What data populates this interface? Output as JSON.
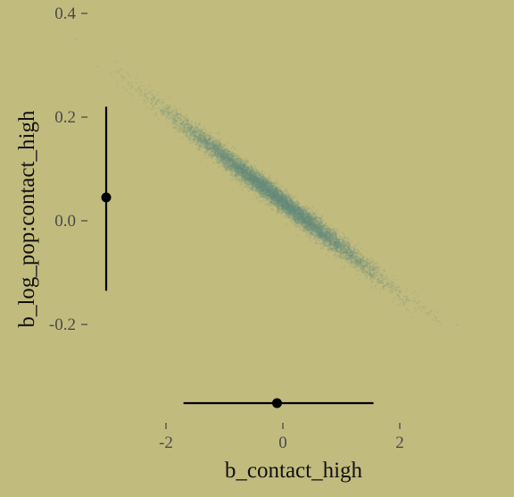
{
  "chart_data": {
    "type": "scatter",
    "xlabel": "b_contact_high",
    "ylabel": "b_log_pop:contact_high",
    "x_ticks": [
      -2,
      0,
      2
    ],
    "x_tick_labels": [
      "-2",
      "0",
      "2"
    ],
    "y_ticks": [
      -0.2,
      0.0,
      0.2,
      0.4
    ],
    "y_tick_labels": [
      "-0.2",
      "0.0",
      "0.2",
      "0.4"
    ],
    "xlim": [
      -2.5,
      3.5
    ],
    "ylim": [
      -0.37,
      0.41
    ],
    "grid": false,
    "legend": "none",
    "point_color": "#688A7F",
    "background_color": "#C2BB7E",
    "point_cloud": {
      "n_draws": 10000,
      "mean": [
        -0.1,
        0.045
      ],
      "sd": [
        0.85,
        0.075
      ],
      "correlation": -0.99
    },
    "x_marginal": {
      "point": -0.1,
      "lower": -1.7,
      "upper": 1.55
    },
    "y_marginal": {
      "point": 0.045,
      "lower": -0.135,
      "upper": 0.22
    }
  }
}
